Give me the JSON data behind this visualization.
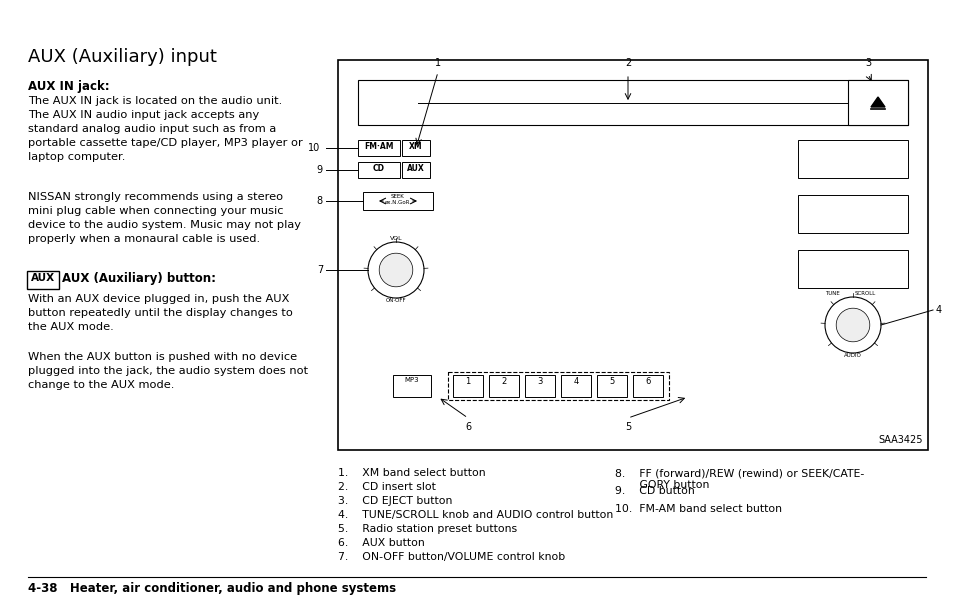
{
  "title": "AUX (Auxiliary) input",
  "background_color": "#ffffff",
  "page_label": "4-38   Heater, air conditioner, audio and phone systems",
  "aux_in_jack_bold": "AUX IN jack:",
  "aux_in_jack_text": "The AUX IN jack is located on the audio unit.\nThe AUX IN audio input jack accepts any\nstandard analog audio input such as from a\nportable cassette tape/CD player, MP3 player or\nlaptop computer.",
  "nissan_text": "NISSAN strongly recommends using a stereo\nmini plug cable when connecting your music\ndevice to the audio system. Music may not play\nproperly when a monaural cable is used.",
  "aux_button_bold": "AUX (Auxiliary) button:",
  "aux_button_text": "With an AUX device plugged in, push the AUX\nbutton repeatedly until the display changes to\nthe AUX mode.",
  "aux_button_text2": "When the AUX button is pushed with no device\nplugged into the jack, the audio system does not\nchange to the AUX mode.",
  "diagram_label": "SAA3425",
  "captions_left": [
    "1.    XM band select button",
    "2.    CD insert slot",
    "3.    CD EJECT button",
    "4.    TUNE/SCROLL knob and AUDIO control button",
    "5.    Radio station preset buttons",
    "6.    AUX button",
    "7.    ON-OFF button/VOLUME control knob"
  ],
  "captions_right": [
    "8.    FF (forward)/REW (rewind) or SEEK/CATE-\n       GORY button",
    "9.    CD button",
    "10.  FM-AM band select button"
  ]
}
